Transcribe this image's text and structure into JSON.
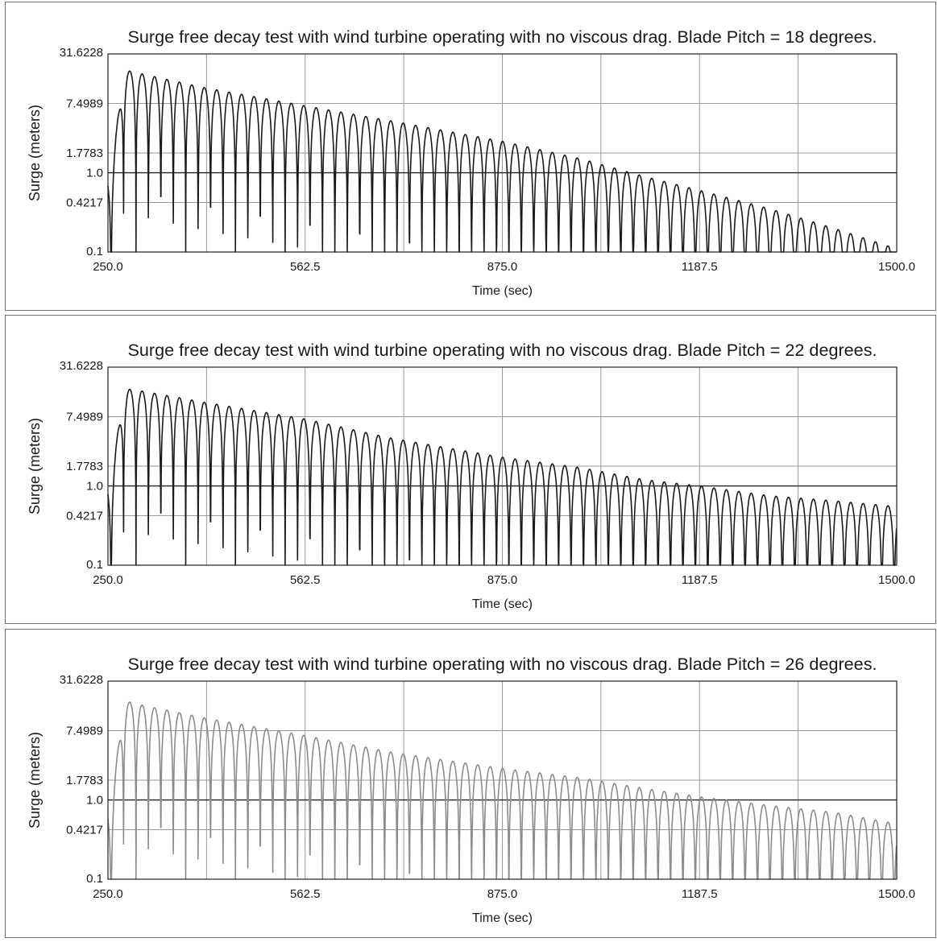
{
  "chart_data": [
    {
      "type": "line",
      "title": "Surge free decay test with wind turbine operating with no viscous drag.  Blade Pitch = 18 degrees.",
      "xlabel": "Time (sec)",
      "ylabel": "Surge (meters)",
      "xlim": [
        250,
        1500
      ],
      "ylim": [
        0.1,
        31.6228
      ],
      "yscale": "log",
      "xticks": [
        "250.0",
        "562.5",
        "875.0",
        "1187.5",
        "1500.0"
      ],
      "yticks": [
        "0.1",
        "0.4217",
        "1.0",
        "1.7783",
        "7.4989",
        "31.6228"
      ],
      "grid": true,
      "line_color": "#1a1a1a",
      "series": [
        {
          "period_sec": 19.7,
          "envelope": [
            [
              255,
              0.95
            ],
            [
              275,
              20.0
            ],
            [
              300,
              18.0
            ],
            [
              400,
              12.0
            ],
            [
              562.5,
              7.0
            ],
            [
              700,
              4.5
            ],
            [
              875,
              2.5
            ],
            [
              1000,
              1.5
            ],
            [
              1100,
              0.9
            ],
            [
              1187.5,
              0.6
            ],
            [
              1300,
              0.35
            ],
            [
              1400,
              0.2
            ],
            [
              1500,
              0.11
            ]
          ]
        }
      ]
    },
    {
      "type": "line",
      "title": "Surge free decay test with wind turbine operating with no viscous drag.  Blade Pitch = 22 degrees.",
      "xlabel": "Time (sec)",
      "ylabel": "Surge (meters)",
      "xlim": [
        250,
        1500
      ],
      "ylim": [
        0.1,
        31.6228
      ],
      "yscale": "log",
      "xticks": [
        "250.0",
        "562.5",
        "875.0",
        "1187.5",
        "1500.0"
      ],
      "yticks": [
        "0.1",
        "0.4217",
        "1.0",
        "1.7783",
        "7.4989",
        "31.6228"
      ],
      "grid": true,
      "line_color": "#1a1a1a",
      "series": [
        {
          "period_sec": 19.7,
          "envelope": [
            [
              255,
              1.1
            ],
            [
              275,
              17.0
            ],
            [
              300,
              16.0
            ],
            [
              400,
              11.5
            ],
            [
              562.5,
              7.0
            ],
            [
              700,
              4.0
            ],
            [
              875,
              2.3
            ],
            [
              1000,
              1.7
            ],
            [
              1100,
              1.2
            ],
            [
              1187.5,
              1.0
            ],
            [
              1300,
              0.75
            ],
            [
              1400,
              0.65
            ],
            [
              1500,
              0.55
            ]
          ]
        }
      ]
    },
    {
      "type": "line",
      "title": "Surge free decay test with wind turbine operating with no viscous drag.  Blade Pitch = 26 degrees.",
      "xlabel": "Time (sec)",
      "ylabel": "Surge (meters)",
      "xlim": [
        250,
        1500
      ],
      "ylim": [
        0.1,
        31.6228
      ],
      "yscale": "log",
      "xticks": [
        "250.0",
        "562.5",
        "875.0",
        "1187.5",
        "1500.0"
      ],
      "yticks": [
        "0.1",
        "0.4217",
        "1.0",
        "1.7783",
        "7.4989",
        "31.6228"
      ],
      "grid": true,
      "line_color": "#8c8c8c",
      "series": [
        {
          "period_sec": 19.7,
          "envelope": [
            [
              255,
              0.8
            ],
            [
              275,
              18.0
            ],
            [
              300,
              16.0
            ],
            [
              400,
              11.0
            ],
            [
              562.5,
              6.5
            ],
            [
              700,
              4.0
            ],
            [
              875,
              2.5
            ],
            [
              1000,
              1.9
            ],
            [
              1100,
              1.4
            ],
            [
              1187.5,
              1.1
            ],
            [
              1300,
              0.85
            ],
            [
              1400,
              0.7
            ],
            [
              1500,
              0.5
            ]
          ]
        }
      ]
    }
  ]
}
